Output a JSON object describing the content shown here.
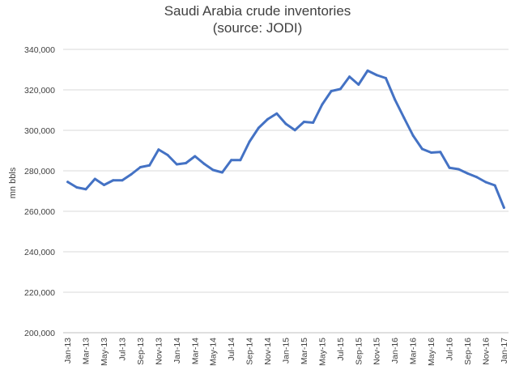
{
  "chart_data": {
    "type": "line",
    "title": "Saudi Arabia crude inventories",
    "subtitle": "(source: JODI)",
    "xlabel": "",
    "ylabel": "mn bbls",
    "ylim": [
      200000,
      340000
    ],
    "yticks": [
      "200,000",
      "220,000",
      "240,000",
      "260,000",
      "280,000",
      "300,000",
      "320,000",
      "340,000"
    ],
    "grid": true,
    "legend": "none",
    "line_color": "#4472c4",
    "xtick_labels": [
      "Jan-13",
      "Mar-13",
      "May-13",
      "Jul-13",
      "Sep-13",
      "Nov-13",
      "Jan-14",
      "Mar-14",
      "May-14",
      "Jul-14",
      "Sep-14",
      "Nov-14",
      "Jan-15",
      "Mar-15",
      "May-15",
      "Jul-15",
      "Sep-15",
      "Nov-15",
      "Jan-16",
      "Mar-16",
      "May-16",
      "Jul-16",
      "Sep-16",
      "Nov-16",
      "Jan-17"
    ],
    "x": [
      "Jan-13",
      "Feb-13",
      "Mar-13",
      "Apr-13",
      "May-13",
      "Jun-13",
      "Jul-13",
      "Aug-13",
      "Sep-13",
      "Oct-13",
      "Nov-13",
      "Dec-13",
      "Jan-14",
      "Feb-14",
      "Mar-14",
      "Apr-14",
      "May-14",
      "Jun-14",
      "Jul-14",
      "Aug-14",
      "Sep-14",
      "Oct-14",
      "Nov-14",
      "Dec-14",
      "Jan-15",
      "Feb-15",
      "Mar-15",
      "Apr-15",
      "May-15",
      "Jun-15",
      "Jul-15",
      "Aug-15",
      "Sep-15",
      "Oct-15",
      "Nov-15",
      "Dec-15",
      "Jan-16",
      "Feb-16",
      "Mar-16",
      "Apr-16",
      "May-16",
      "Jun-16",
      "Jul-16",
      "Aug-16",
      "Sep-16",
      "Oct-16",
      "Nov-16",
      "Dec-16",
      "Jan-17"
    ],
    "series": [
      {
        "values": [
          274500,
          271800,
          270900,
          276000,
          273000,
          275300,
          275300,
          278300,
          281800,
          282700,
          290500,
          287800,
          283200,
          283800,
          287200,
          283500,
          280400,
          279200,
          285300,
          285300,
          294400,
          301200,
          305500,
          308300,
          303200,
          300100,
          304200,
          303800,
          312800,
          319400,
          320400,
          326500,
          322600,
          329500,
          327300,
          325800,
          315200,
          306200,
          297400,
          290800,
          289000,
          289300,
          281500,
          280800,
          278700,
          276900,
          274400,
          272800,
          261800
        ]
      }
    ]
  }
}
